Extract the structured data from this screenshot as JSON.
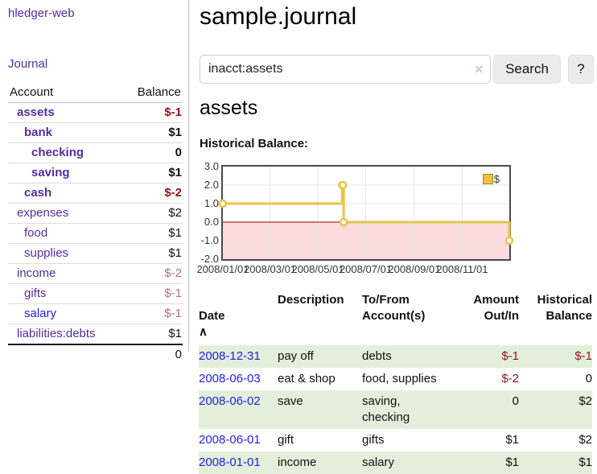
{
  "sidebar": {
    "app_title": "hledger-web",
    "nav": {
      "journal": "Journal"
    },
    "accounts_table": {
      "headers": {
        "account": "Account",
        "balance": "Balance"
      },
      "rows": [
        {
          "name": "assets",
          "depth": 0,
          "bold": true,
          "balance": "$-1",
          "neg": "strong",
          "link": "purple"
        },
        {
          "name": "bank",
          "depth": 1,
          "bold": true,
          "balance": "$1",
          "neg": "none",
          "link": "purple"
        },
        {
          "name": "checking",
          "depth": 2,
          "bold": true,
          "balance": "0",
          "neg": "none",
          "link": "purple"
        },
        {
          "name": "saving",
          "depth": 2,
          "bold": true,
          "balance": "$1",
          "neg": "none",
          "link": "purple"
        },
        {
          "name": "cash",
          "depth": 1,
          "bold": true,
          "balance": "$-2",
          "neg": "strong",
          "link": "purple"
        },
        {
          "name": "expenses",
          "depth": 0,
          "bold": false,
          "balance": "$2",
          "neg": "none",
          "link": "purple"
        },
        {
          "name": "food",
          "depth": 1,
          "bold": false,
          "balance": "$1",
          "neg": "none",
          "link": "purple"
        },
        {
          "name": "supplies",
          "depth": 1,
          "bold": false,
          "balance": "$1",
          "neg": "none",
          "link": "purple"
        },
        {
          "name": "income",
          "depth": 0,
          "bold": false,
          "balance": "$-2",
          "neg": "muted",
          "link": "purple"
        },
        {
          "name": "gifts",
          "depth": 1,
          "bold": false,
          "balance": "$-1",
          "neg": "muted",
          "link": "purple"
        },
        {
          "name": "salary",
          "depth": 1,
          "bold": false,
          "balance": "$-1",
          "neg": "muted",
          "link": "blue"
        },
        {
          "name": "liabilities:debts",
          "depth": 0,
          "bold": false,
          "balance": "$1",
          "neg": "none",
          "link": "purple"
        }
      ],
      "total": "0"
    }
  },
  "header": {
    "title": "sample.journal"
  },
  "search": {
    "value": "inacct:assets",
    "clear_icon": "×",
    "button": "Search",
    "help_button": "?"
  },
  "account_page": {
    "title": "assets",
    "chart_label": "Historical Balance:"
  },
  "chart_data": {
    "type": "line",
    "step": true,
    "title": "Historical Balance",
    "legend": [
      {
        "label": "$",
        "color": "#eec23e"
      }
    ],
    "ylim": [
      -2,
      3
    ],
    "yticks": [
      {
        "label": "3.0",
        "value": 3
      },
      {
        "label": "2.0",
        "value": 2
      },
      {
        "label": "1.0",
        "value": 1
      },
      {
        "label": "0.0",
        "value": 0
      },
      {
        "label": "-1.0",
        "value": -1
      },
      {
        "label": "-2.0",
        "value": -2
      }
    ],
    "x_domain_days": [
      0,
      365
    ],
    "xticks": [
      {
        "label": "2008/01/01",
        "day": 0
      },
      {
        "label": "2008/03/01",
        "day": 60
      },
      {
        "label": "2008/05/01",
        "day": 121
      },
      {
        "label": "2008/07/01",
        "day": 182
      },
      {
        "label": "2008/09/01",
        "day": 244
      },
      {
        "label": "2008/11/01",
        "day": 305
      }
    ],
    "series": [
      {
        "name": "$",
        "points": [
          {
            "date": "2008-01-01",
            "day": 0,
            "value": 1
          },
          {
            "date": "2008-06-01",
            "day": 152,
            "value": 2
          },
          {
            "date": "2008-06-02",
            "day": 153,
            "value": 2
          },
          {
            "date": "2008-06-03",
            "day": 154,
            "value": 0
          },
          {
            "date": "2008-12-31",
            "day": 365,
            "value": -1
          }
        ]
      }
    ],
    "colors": {
      "line": "#e9c34d",
      "marker_fill": "#ffffff",
      "negative_region": "#fbdbdc",
      "zero_line": "#8b0000",
      "grid": "#e4e4e4"
    }
  },
  "register_table": {
    "headers": {
      "date": "Date",
      "sort_icon": "∧",
      "description": "Description",
      "tofrom": "To/From\nAccount(s)",
      "amount": "Amount\nOut/In",
      "balance": "Historical\nBalance"
    },
    "rows": [
      {
        "date": "2008-12-31",
        "description": "pay off",
        "accounts": [
          "debts"
        ],
        "amount": "$-1",
        "amount_neg": true,
        "balance": "$-1",
        "balance_neg": true,
        "shaded": true
      },
      {
        "date": "2008-06-03",
        "description": "eat & shop",
        "accounts": [
          "food, supplies"
        ],
        "amount": "$-2",
        "amount_neg": true,
        "balance": "0",
        "balance_neg": false,
        "shaded": false
      },
      {
        "date": "2008-06-02",
        "description": "save",
        "accounts": [
          "saving,",
          "checking"
        ],
        "amount": "0",
        "amount_neg": false,
        "balance": "$2",
        "balance_neg": false,
        "shaded": true
      },
      {
        "date": "2008-06-01",
        "description": "gift",
        "accounts": [
          "gifts"
        ],
        "amount": "$1",
        "amount_neg": false,
        "balance": "$2",
        "balance_neg": false,
        "shaded": false
      },
      {
        "date": "2008-01-01",
        "description": "income",
        "accounts": [
          "salary"
        ],
        "amount": "$1",
        "amount_neg": false,
        "balance": "$1",
        "balance_neg": false,
        "shaded": true
      }
    ]
  }
}
